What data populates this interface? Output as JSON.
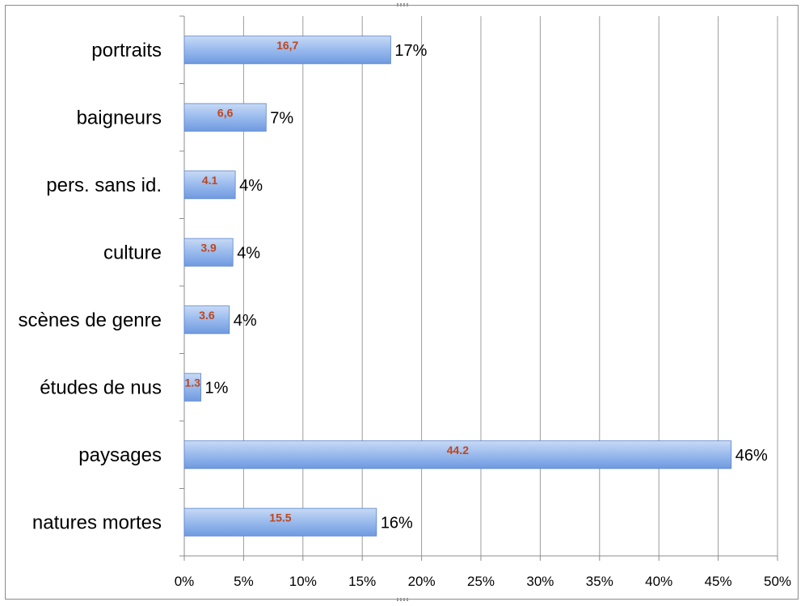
{
  "chart_data": {
    "type": "bar",
    "orientation": "horizontal",
    "categories": [
      "portraits",
      "baigneurs",
      "pers. sans id.",
      "culture",
      "scènes de genre",
      "études de nus",
      "paysages",
      "natures mortes"
    ],
    "values": [
      17.4,
      6.9,
      4.3,
      4.1,
      3.8,
      1.4,
      46.1,
      16.2
    ],
    "value_labels": [
      "17%",
      "7%",
      "4%",
      "4%",
      "4%",
      "1%",
      "46%",
      "16%"
    ],
    "inner_labels": [
      "16,7",
      "6,6",
      "4.1",
      "3.9",
      "3.6",
      "1.3",
      "44.2",
      "15.5"
    ],
    "xlim": [
      0,
      50
    ],
    "x_ticks": [
      "0%",
      "5%",
      "10%",
      "15%",
      "20%",
      "25%",
      "30%",
      "35%",
      "40%",
      "45%",
      "50%"
    ],
    "grid": "vertical",
    "legend": "none",
    "colors": {
      "bar_top": "#c8daf5",
      "bar_bottom": "#6f9ae0",
      "bar_edge": "#5a84cc",
      "inner_label": "#c0451c",
      "grid": "#9c9c9c",
      "axis": "#8c8c8c"
    }
  }
}
